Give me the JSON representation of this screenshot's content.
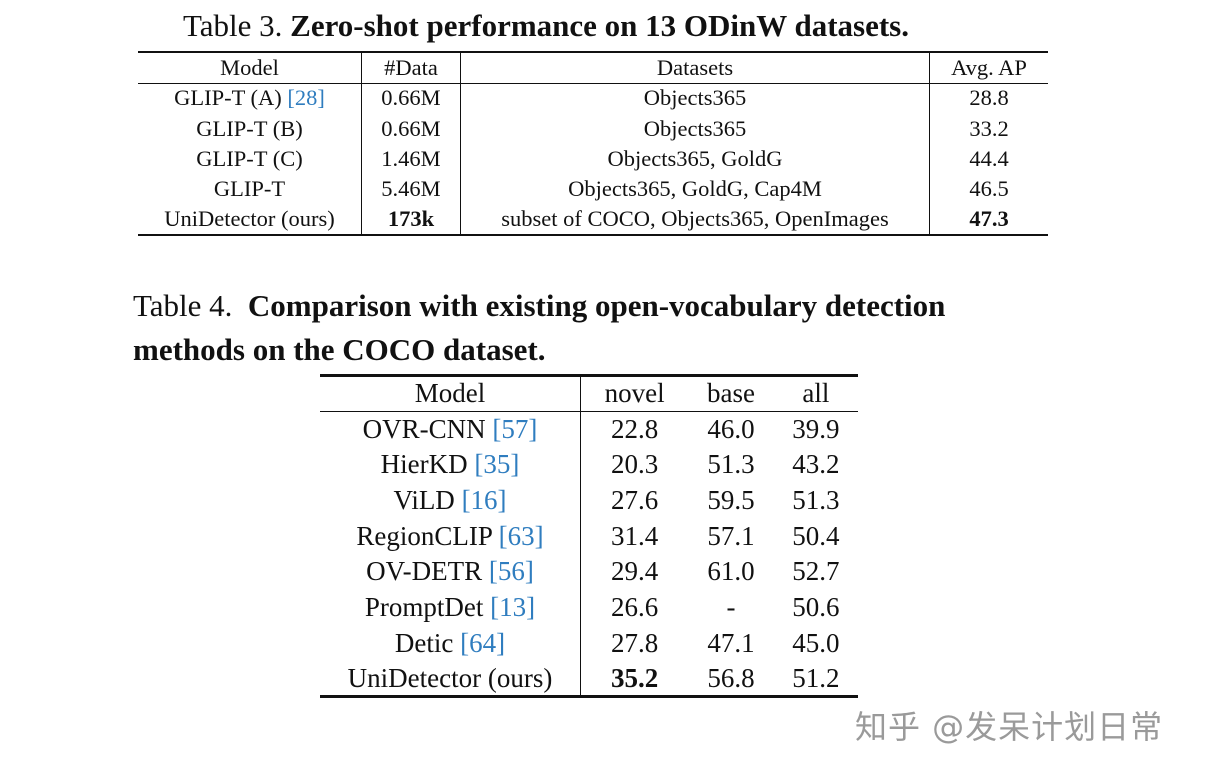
{
  "table3": {
    "caption_label": "Table 3.",
    "caption_title": "Zero-shot performance on 13 ODinW datasets.",
    "headers": [
      "Model",
      "#Data",
      "Datasets",
      "Avg. AP"
    ],
    "rows": [
      {
        "model": "GLIP-T (A) ",
        "cite": "[28]",
        "data": "0.66M",
        "datasets": "Objects365",
        "ap": "28.8"
      },
      {
        "model": "GLIP-T (B)",
        "cite": "",
        "data": "0.66M",
        "datasets": "Objects365",
        "ap": "33.2"
      },
      {
        "model": "GLIP-T (C)",
        "cite": "",
        "data": "1.46M",
        "datasets": "Objects365, GoldG",
        "ap": "44.4"
      },
      {
        "model": "GLIP-T",
        "cite": "",
        "data": "5.46M",
        "datasets": "Objects365, GoldG, Cap4M",
        "ap": "46.5"
      },
      {
        "model": "UniDetector (ours)",
        "cite": "",
        "data": "173k",
        "datasets": "subset of COCO, Objects365, OpenImages",
        "ap": "47.3"
      }
    ]
  },
  "table4": {
    "caption_label": "Table 4.",
    "caption_title_line1": "Comparison with existing open-vocabulary detection",
    "caption_title_line2": "methods on the COCO dataset.",
    "headers": [
      "Model",
      "novel",
      "base",
      "all"
    ],
    "rows": [
      {
        "model": "OVR-CNN ",
        "cite": "[57]",
        "novel": "22.8",
        "base": "46.0",
        "all": "39.9"
      },
      {
        "model": "HierKD ",
        "cite": "[35]",
        "novel": "20.3",
        "base": "51.3",
        "all": "43.2"
      },
      {
        "model": "ViLD ",
        "cite": "[16]",
        "novel": "27.6",
        "base": "59.5",
        "all": "51.3"
      },
      {
        "model": "RegionCLIP ",
        "cite": "[63]",
        "novel": "31.4",
        "base": "57.1",
        "all": "50.4"
      },
      {
        "model": "OV-DETR ",
        "cite": "[56]",
        "novel": "29.4",
        "base": "61.0",
        "all": "52.7"
      },
      {
        "model": "PromptDet ",
        "cite": "[13]",
        "novel": "26.6",
        "base": "-",
        "all": "50.6"
      },
      {
        "model": "Detic ",
        "cite": "[64]",
        "novel": "27.8",
        "base": "47.1",
        "all": "45.0"
      },
      {
        "model": "UniDetector (ours)",
        "cite": "",
        "novel": "35.2",
        "base": "56.8",
        "all": "51.2"
      }
    ]
  },
  "watermark": "知乎 @发呆计划日常",
  "colors": {
    "citation": "#2f7dbf",
    "watermark": "#9a9a9a"
  }
}
